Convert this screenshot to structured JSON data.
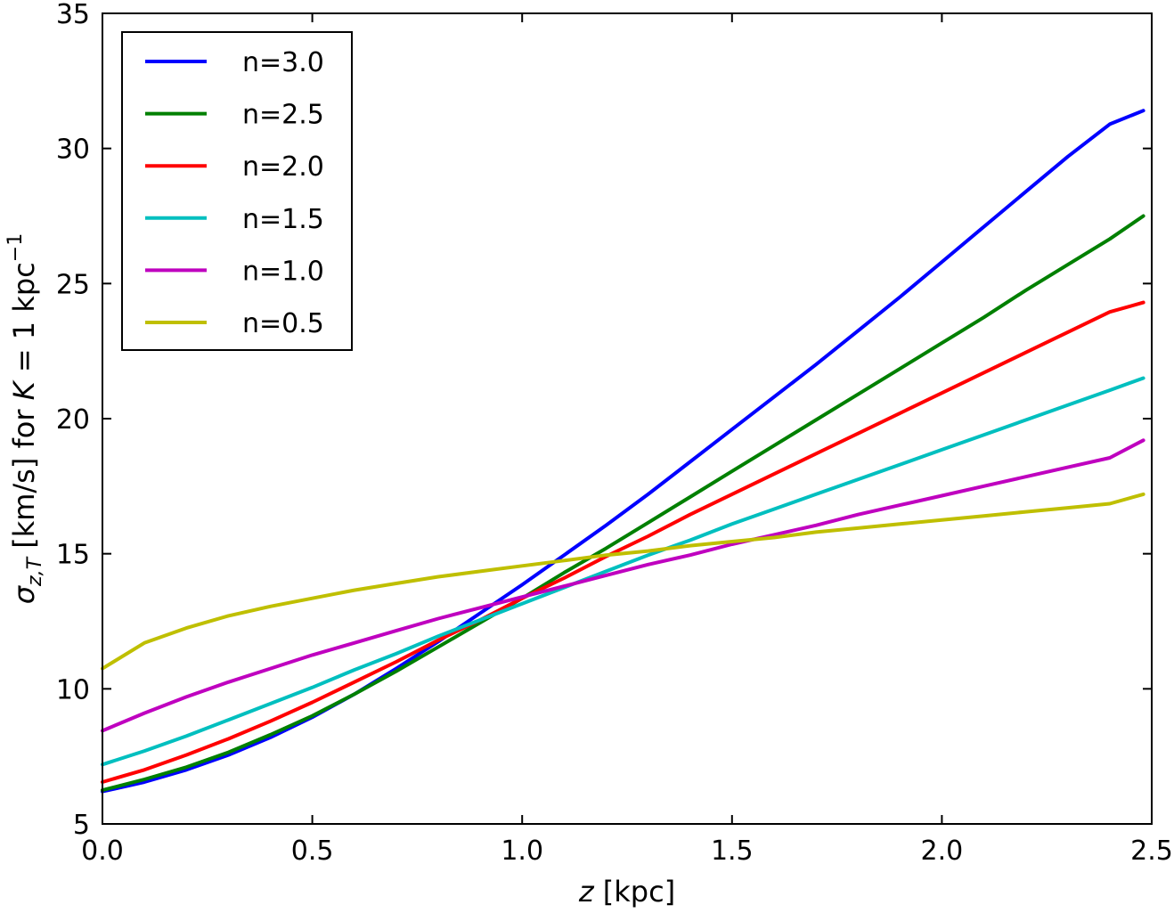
{
  "chart_data": {
    "type": "line",
    "xlabel": {
      "italic": "z",
      "rest": " [kpc]"
    },
    "ylabel": {
      "sigma": "σ",
      "sub": "z,T",
      "mid": " [km/s] for ",
      "italicK": "K",
      "eq": " = 1 kpc",
      "sup": "−1"
    },
    "xlim": [
      0,
      2.5
    ],
    "ylim": [
      5,
      35
    ],
    "xticks": [
      0.0,
      0.5,
      1.0,
      1.5,
      2.0,
      2.5
    ],
    "xtick_labels": [
      "0.0",
      "0.5",
      "1.0",
      "1.5",
      "2.0",
      "2.5"
    ],
    "yticks": [
      5,
      10,
      15,
      20,
      25,
      30,
      35
    ],
    "ytick_labels": [
      "5",
      "10",
      "15",
      "20",
      "25",
      "30",
      "35"
    ],
    "grid": false,
    "legend_position": "top-left",
    "x": [
      0,
      0.1,
      0.2,
      0.3,
      0.4,
      0.5,
      0.6,
      0.7,
      0.8,
      0.9,
      1.0,
      1.1,
      1.2,
      1.3,
      1.4,
      1.5,
      1.6,
      1.7,
      1.8,
      1.9,
      2.0,
      2.1,
      2.2,
      2.3,
      2.4,
      2.48
    ],
    "series": [
      {
        "name": "n=3.0",
        "color": "#0000ff",
        "values": [
          6.2,
          6.55,
          7.0,
          7.55,
          8.2,
          8.95,
          9.8,
          10.75,
          11.75,
          12.8,
          13.85,
          14.95,
          16.05,
          17.2,
          18.4,
          19.6,
          20.8,
          22.0,
          23.25,
          24.5,
          25.8,
          27.1,
          28.4,
          29.7,
          30.9,
          31.4
        ]
      },
      {
        "name": "n=2.5",
        "color": "#008000",
        "values": [
          6.25,
          6.65,
          7.1,
          7.65,
          8.3,
          9.0,
          9.8,
          10.65,
          11.55,
          12.45,
          13.35,
          14.3,
          15.2,
          16.15,
          17.1,
          18.05,
          19.0,
          19.95,
          20.9,
          21.85,
          22.8,
          23.75,
          24.75,
          25.7,
          26.65,
          27.5
        ]
      },
      {
        "name": "n=2.0",
        "color": "#ff0000",
        "values": [
          6.55,
          7.0,
          7.55,
          8.15,
          8.8,
          9.5,
          10.25,
          11.0,
          11.8,
          12.55,
          13.35,
          14.1,
          14.9,
          15.65,
          16.45,
          17.2,
          17.95,
          18.7,
          19.45,
          20.2,
          20.95,
          21.7,
          22.45,
          23.2,
          23.95,
          24.3
        ]
      },
      {
        "name": "n=1.5",
        "color": "#00bfbf",
        "values": [
          7.2,
          7.7,
          8.25,
          8.85,
          9.45,
          10.05,
          10.7,
          11.3,
          11.95,
          12.55,
          13.15,
          13.75,
          14.35,
          14.95,
          15.5,
          16.1,
          16.65,
          17.2,
          17.75,
          18.3,
          18.85,
          19.4,
          19.95,
          20.5,
          21.05,
          21.5
        ]
      },
      {
        "name": "n=1.0",
        "color": "#bf00bf",
        "values": [
          8.45,
          9.1,
          9.7,
          10.25,
          10.75,
          11.25,
          11.7,
          12.15,
          12.6,
          13.0,
          13.4,
          13.8,
          14.2,
          14.6,
          14.95,
          15.35,
          15.7,
          16.05,
          16.45,
          16.8,
          17.15,
          17.5,
          17.85,
          18.2,
          18.55,
          19.2
        ]
      },
      {
        "name": "n=0.5",
        "color": "#bfbf00",
        "values": [
          10.75,
          11.7,
          12.25,
          12.7,
          13.05,
          13.35,
          13.65,
          13.9,
          14.15,
          14.35,
          14.55,
          14.75,
          14.95,
          15.1,
          15.3,
          15.45,
          15.6,
          15.8,
          15.95,
          16.1,
          16.25,
          16.4,
          16.55,
          16.7,
          16.85,
          17.2
        ]
      }
    ]
  }
}
